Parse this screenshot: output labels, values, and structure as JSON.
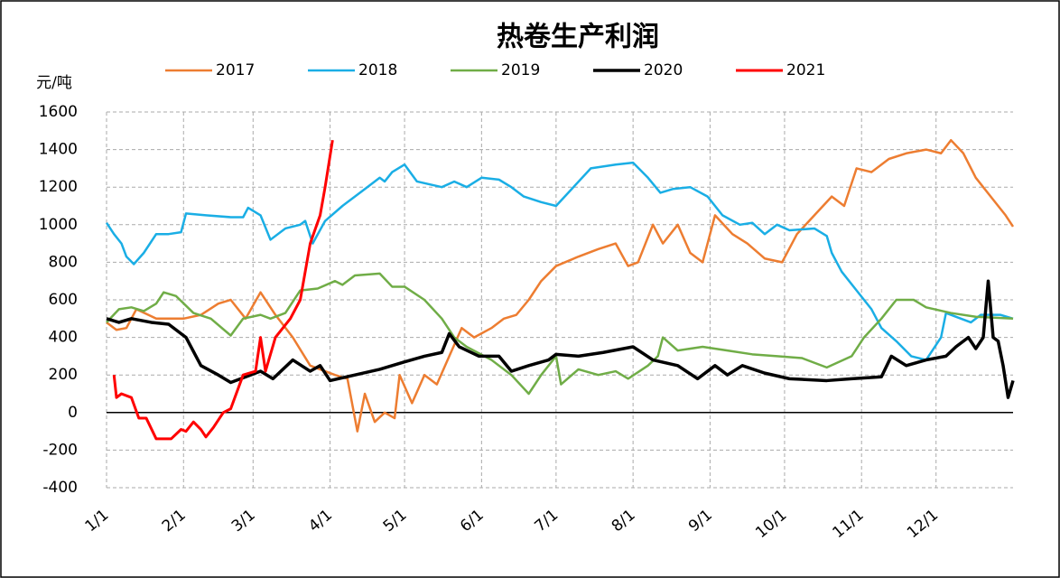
{
  "chart_data": {
    "type": "line",
    "title": "热卷生产利润",
    "y_label": "元/吨",
    "xlim": [
      0,
      365
    ],
    "xticks": [
      {
        "value": 0,
        "label": "1/1"
      },
      {
        "value": 31,
        "label": "2/1"
      },
      {
        "value": 59,
        "label": "3/1"
      },
      {
        "value": 90,
        "label": "4/1"
      },
      {
        "value": 120,
        "label": "5/1"
      },
      {
        "value": 151,
        "label": "6/1"
      },
      {
        "value": 181,
        "label": "7/1"
      },
      {
        "value": 212,
        "label": "8/1"
      },
      {
        "value": 243,
        "label": "9/1"
      },
      {
        "value": 273,
        "label": "10/1"
      },
      {
        "value": 304,
        "label": "11/1"
      },
      {
        "value": 334,
        "label": "12/1"
      }
    ],
    "ylim": [
      -400,
      1600
    ],
    "yticks": [
      -400,
      -200,
      0,
      200,
      400,
      600,
      800,
      1000,
      1200,
      1400,
      1600
    ],
    "grid": true,
    "legend": "top",
    "series": [
      {
        "name": "2017",
        "color": "#ed7d31",
        "width": 2.5,
        "x": [
          0,
          4,
          8,
          12,
          20,
          31,
          38,
          45,
          50,
          56,
          62,
          68,
          75,
          82,
          88,
          92,
          97,
          101,
          104,
          108,
          112,
          116,
          118,
          123,
          128,
          133,
          138,
          143,
          148,
          155,
          160,
          165,
          170,
          175,
          181,
          190,
          198,
          205,
          210,
          214,
          220,
          224,
          230,
          235,
          240,
          245,
          252,
          258,
          265,
          272,
          278,
          285,
          292,
          297,
          302,
          308,
          315,
          322,
          330,
          336,
          340,
          345,
          350,
          356,
          362,
          365
        ],
        "values": [
          480,
          440,
          450,
          550,
          500,
          500,
          520,
          580,
          600,
          500,
          640,
          520,
          400,
          250,
          220,
          200,
          180,
          -100,
          100,
          -50,
          0,
          -30,
          200,
          50,
          200,
          150,
          300,
          450,
          400,
          450,
          500,
          520,
          600,
          700,
          780,
          830,
          870,
          900,
          780,
          800,
          1000,
          900,
          1000,
          850,
          800,
          1050,
          950,
          900,
          820,
          800,
          950,
          1050,
          1150,
          1100,
          1300,
          1280,
          1350,
          1380,
          1400,
          1380,
          1450,
          1380,
          1250,
          1150,
          1050,
          990
        ]
      },
      {
        "name": "2018",
        "color": "#1aaee5",
        "width": 2.5,
        "x": [
          0,
          3,
          6,
          8,
          11,
          15,
          20,
          25,
          30,
          32,
          40,
          50,
          55,
          57,
          62,
          66,
          72,
          78,
          80,
          83,
          88,
          95,
          100,
          105,
          110,
          112,
          115,
          120,
          125,
          135,
          140,
          145,
          151,
          158,
          163,
          168,
          175,
          181,
          188,
          195,
          205,
          212,
          218,
          223,
          228,
          235,
          242,
          248,
          255,
          260,
          265,
          270,
          275,
          285,
          290,
          292,
          296,
          302,
          308,
          312,
          318,
          324,
          330,
          336,
          338,
          344,
          348,
          352,
          360,
          365
        ],
        "values": [
          1010,
          950,
          900,
          830,
          790,
          850,
          950,
          950,
          960,
          1060,
          1050,
          1040,
          1040,
          1090,
          1050,
          920,
          980,
          1000,
          1020,
          900,
          1020,
          1100,
          1150,
          1200,
          1250,
          1230,
          1280,
          1320,
          1230,
          1200,
          1230,
          1200,
          1250,
          1240,
          1200,
          1150,
          1120,
          1100,
          1200,
          1300,
          1320,
          1330,
          1250,
          1170,
          1190,
          1200,
          1150,
          1050,
          1000,
          1010,
          950,
          1000,
          970,
          980,
          940,
          850,
          750,
          650,
          550,
          450,
          380,
          300,
          280,
          400,
          530,
          500,
          480,
          520,
          520,
          500
        ]
      },
      {
        "name": "2019",
        "color": "#70ad47",
        "width": 2.5,
        "x": [
          0,
          5,
          10,
          15,
          20,
          23,
          28,
          35,
          42,
          50,
          55,
          62,
          66,
          72,
          78,
          85,
          92,
          95,
          100,
          110,
          115,
          120,
          128,
          135,
          140,
          145,
          155,
          163,
          170,
          175,
          181,
          183,
          190,
          198,
          205,
          210,
          218,
          222,
          224,
          230,
          240,
          250,
          260,
          270,
          280,
          290,
          300,
          305,
          312,
          318,
          325,
          330,
          340,
          350,
          365
        ],
        "values": [
          480,
          550,
          560,
          540,
          580,
          640,
          620,
          530,
          500,
          410,
          500,
          520,
          500,
          530,
          650,
          660,
          700,
          680,
          730,
          740,
          670,
          670,
          600,
          500,
          400,
          350,
          280,
          200,
          100,
          200,
          300,
          150,
          230,
          200,
          220,
          180,
          250,
          300,
          400,
          330,
          350,
          330,
          310,
          300,
          290,
          240,
          300,
          400,
          500,
          600,
          600,
          560,
          530,
          510,
          500
        ]
      },
      {
        "name": "2020",
        "color": "#000000",
        "width": 3.5,
        "x": [
          0,
          5,
          10,
          18,
          25,
          32,
          38,
          45,
          50,
          58,
          62,
          67,
          75,
          82,
          86,
          90,
          100,
          110,
          120,
          128,
          135,
          138,
          142,
          150,
          158,
          163,
          170,
          178,
          181,
          190,
          200,
          212,
          220,
          230,
          238,
          245,
          250,
          256,
          265,
          275,
          290,
          300,
          312,
          316,
          322,
          330,
          338,
          342,
          347,
          350,
          353,
          355,
          357,
          359,
          361,
          363,
          365
        ],
        "values": [
          500,
          480,
          500,
          480,
          470,
          400,
          250,
          200,
          160,
          200,
          220,
          180,
          280,
          220,
          250,
          170,
          200,
          230,
          270,
          300,
          320,
          420,
          350,
          300,
          300,
          220,
          250,
          280,
          310,
          300,
          320,
          350,
          280,
          250,
          180,
          250,
          200,
          250,
          210,
          180,
          170,
          180,
          190,
          300,
          250,
          280,
          300,
          350,
          400,
          340,
          400,
          700,
          400,
          380,
          250,
          80,
          170
        ]
      },
      {
        "name": "2021",
        "color": "#ff0000",
        "width": 3,
        "x": [
          3,
          4,
          6,
          10,
          13,
          16,
          20,
          26,
          30,
          32,
          35,
          38,
          40,
          43,
          47,
          50,
          55,
          60,
          62,
          64,
          68,
          74,
          78,
          82,
          86,
          88,
          91
        ],
        "values": [
          200,
          80,
          100,
          80,
          -30,
          -30,
          -140,
          -140,
          -90,
          -100,
          -50,
          -90,
          -130,
          -80,
          0,
          20,
          200,
          220,
          400,
          220,
          400,
          500,
          600,
          900,
          1050,
          1200,
          1450
        ]
      }
    ]
  }
}
